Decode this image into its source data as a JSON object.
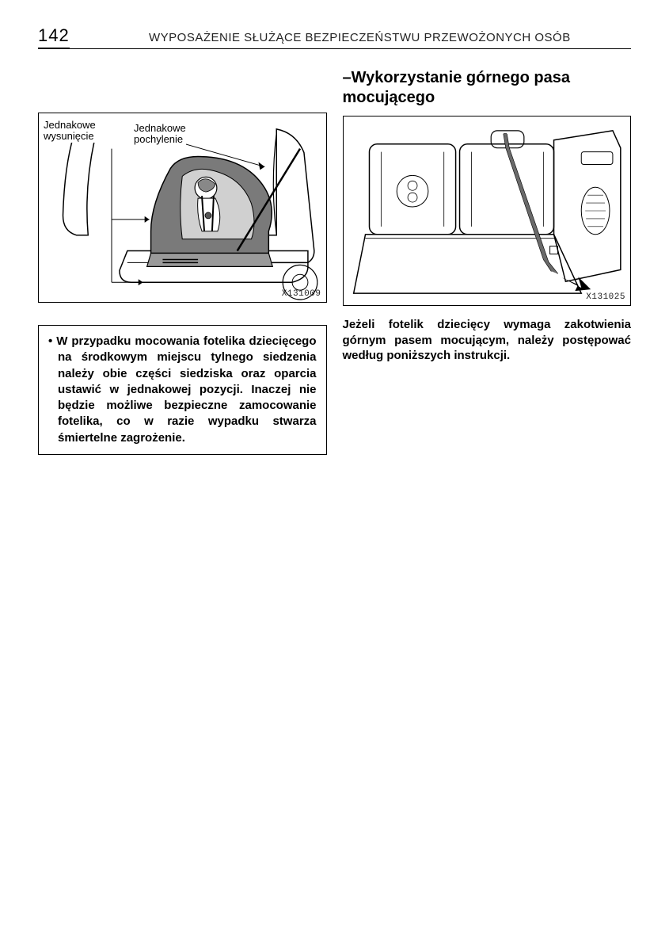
{
  "page": {
    "number": "142",
    "header_title": "WYPOSAŻENIE SŁUŻĄCE BEZPIECZEŃSTWU PRZEWOŻONYCH OSÓB"
  },
  "left": {
    "figure": {
      "label1": "Jednakowe\nwysunięcie",
      "label2": "Jednakowe\npochylenie",
      "image_id": "X131009",
      "stroke": "#000000",
      "bg": "#ffffff",
      "seat_fill": "#7a7a7a",
      "light_fill": "#d0d0d0"
    },
    "warning_text": "• W przypadku mocowania fotelika dziecięcego na środkowym miejscu tylnego siedzenia należy obie części siedziska oraz oparcia ustawić w jednakowej pozycji. Inaczej nie będzie możliwe bezpieczne zamocowanie fotelika, co w razie wypadku stwarza śmiertelne zagrożenie."
  },
  "right": {
    "heading": "–Wykorzystanie górnego pasa mocującego",
    "figure": {
      "image_id": "X131025",
      "stroke": "#000000",
      "bg": "#ffffff",
      "strap_fill": "#6a6a6a",
      "seat_fill": "#cfcfcf"
    },
    "body_text": "Jeżeli fotelik dziecięcy wymaga zakotwienia górnym pasem mocującym, należy postępować według poniższych instrukcji."
  }
}
